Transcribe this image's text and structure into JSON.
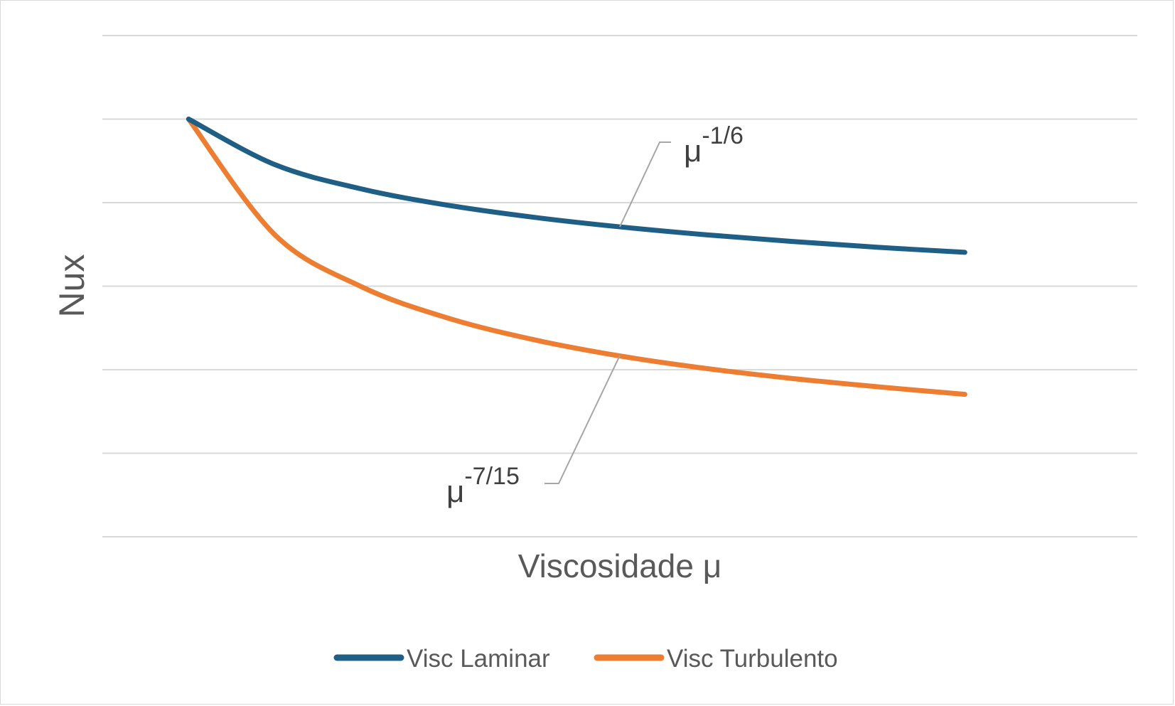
{
  "chart_data": {
    "type": "line",
    "title": "",
    "xlabel": "Viscosidade μ",
    "ylabel": "Nux",
    "x_tick_labels": false,
    "y_tick_labels": false,
    "grid": true,
    "legend_position": "bottom",
    "x": [
      1,
      2,
      3,
      4,
      5,
      6,
      7,
      8,
      9,
      10
    ],
    "series": [
      {
        "name": "Visc Laminar",
        "color": "#1f5f86",
        "exponent": "-1/6",
        "values": [
          1.0,
          0.891,
          0.833,
          0.794,
          0.765,
          0.742,
          0.723,
          0.707,
          0.693,
          0.681
        ]
      },
      {
        "name": "Visc Turbulento",
        "color": "#ed7d31",
        "exponent": "-7/15",
        "values": [
          1.0,
          0.723,
          0.599,
          0.524,
          0.472,
          0.433,
          0.403,
          0.379,
          0.359,
          0.341
        ]
      }
    ],
    "ylim": [
      0,
      1.2
    ],
    "annotations": [
      {
        "base": "μ",
        "sup": "-1/6",
        "series": "Visc Laminar"
      },
      {
        "base": "μ",
        "sup": "-7/15",
        "series": "Visc Turbulento"
      }
    ]
  }
}
